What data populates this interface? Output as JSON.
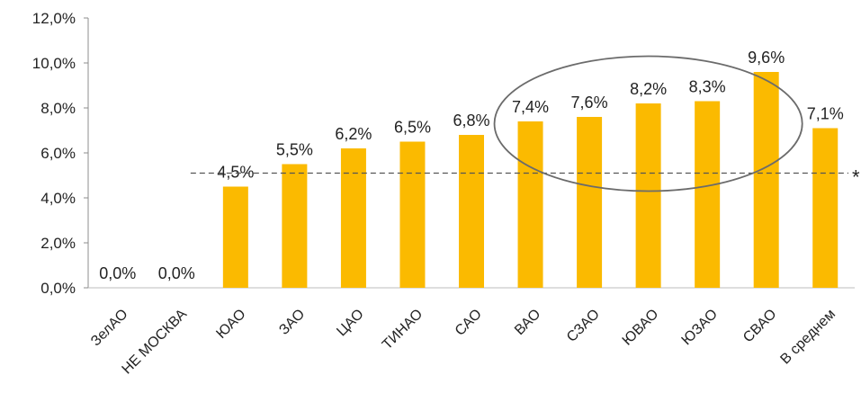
{
  "chart_data": {
    "type": "bar",
    "categories": [
      "ЗелАО",
      "НЕ МОСКВА",
      "ЮАО",
      "ЗАО",
      "ЦАО",
      "ТИНАО",
      "САО",
      "ВАО",
      "СЗАО",
      "ЮВАО",
      "ЮЗАО",
      "СВАО",
      "В среднем"
    ],
    "values": [
      0.0,
      0.0,
      4.5,
      5.5,
      6.2,
      6.5,
      6.8,
      7.4,
      7.6,
      8.2,
      8.3,
      9.6,
      7.1
    ],
    "data_labels": [
      "0,0%",
      "0,0%",
      "4,5%",
      "5,5%",
      "6,2%",
      "6,5%",
      "6,8%",
      "7,4%",
      "7,6%",
      "8,2%",
      "8,3%",
      "9,6%",
      "7,1%"
    ],
    "ylim": [
      0,
      12
    ],
    "yticks": [
      0,
      2,
      4,
      6,
      8,
      10,
      12
    ],
    "ytick_labels": [
      "0,0%",
      "2,0%",
      "4,0%",
      "6,0%",
      "8,0%",
      "10,0%",
      "12,0%"
    ],
    "reference_line": {
      "value": 5.1,
      "marker": "*"
    },
    "highlight_categories": [
      "ВАО",
      "СЗАО",
      "ЮВАО",
      "ЮЗАО",
      "СВАО"
    ],
    "bar_color": "#FBBA00",
    "grid": false,
    "legend": "none"
  }
}
